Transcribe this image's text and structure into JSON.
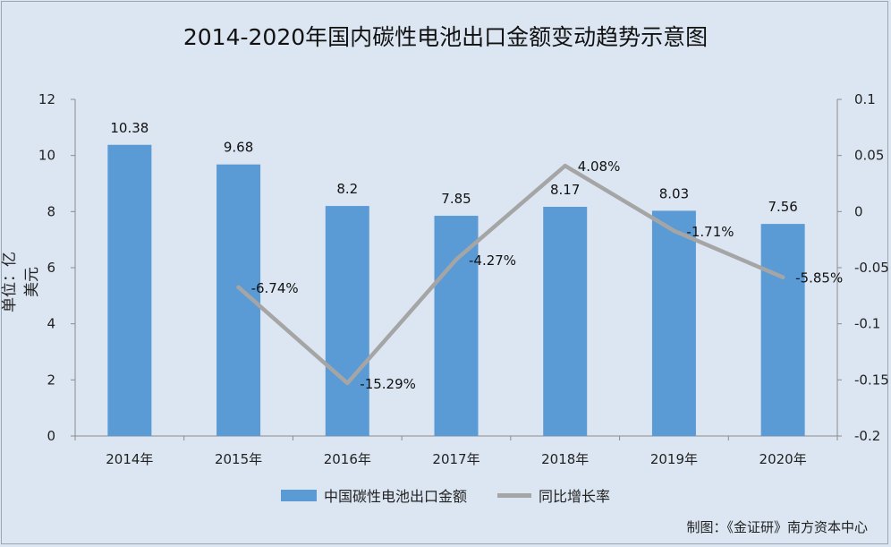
{
  "title": "2014-2020年国内碳性电池出口金额变动趋势示意图",
  "credit": "制图：《金证研》南方资本中心",
  "colors": {
    "background": "#dce6f2",
    "bar": "#5b9bd5",
    "line": "#a5a5a5"
  },
  "chart_data": {
    "type": "bar",
    "title": "2014-2020年国内碳性电池出口金额变动趋势示意图",
    "categories": [
      "2014年",
      "2015年",
      "2016年",
      "2017年",
      "2018年",
      "2019年",
      "2020年"
    ],
    "ylabel": "单位：亿美元",
    "ylim": [
      0,
      12
    ],
    "yticks": [
      "0",
      "2",
      "4",
      "6",
      "8",
      "10",
      "12"
    ],
    "y2lim": [
      -0.2,
      0.1
    ],
    "y2ticks": [
      "-0.2",
      "-0.15",
      "-0.1",
      "-0.05",
      "0",
      "0.05",
      "0.1"
    ],
    "legend_position": "bottom",
    "grid": false,
    "series": [
      {
        "name": "中国碳性电池出口金额",
        "type": "bar",
        "axis": "left",
        "values": [
          10.38,
          9.68,
          8.2,
          7.85,
          8.17,
          8.03,
          7.56
        ],
        "labels": [
          "10.38",
          "9.68",
          "8.2",
          "7.85",
          "8.17",
          "8.03",
          "7.56"
        ]
      },
      {
        "name": "同比增长率",
        "type": "line",
        "axis": "right",
        "values": [
          null,
          -0.0674,
          -0.1529,
          -0.0427,
          0.0408,
          -0.0171,
          -0.0585
        ],
        "labels": [
          null,
          "-6.74%",
          "-15.29%",
          "-4.27%",
          "4.08%",
          "-1.71%",
          "-5.85%"
        ]
      }
    ]
  }
}
